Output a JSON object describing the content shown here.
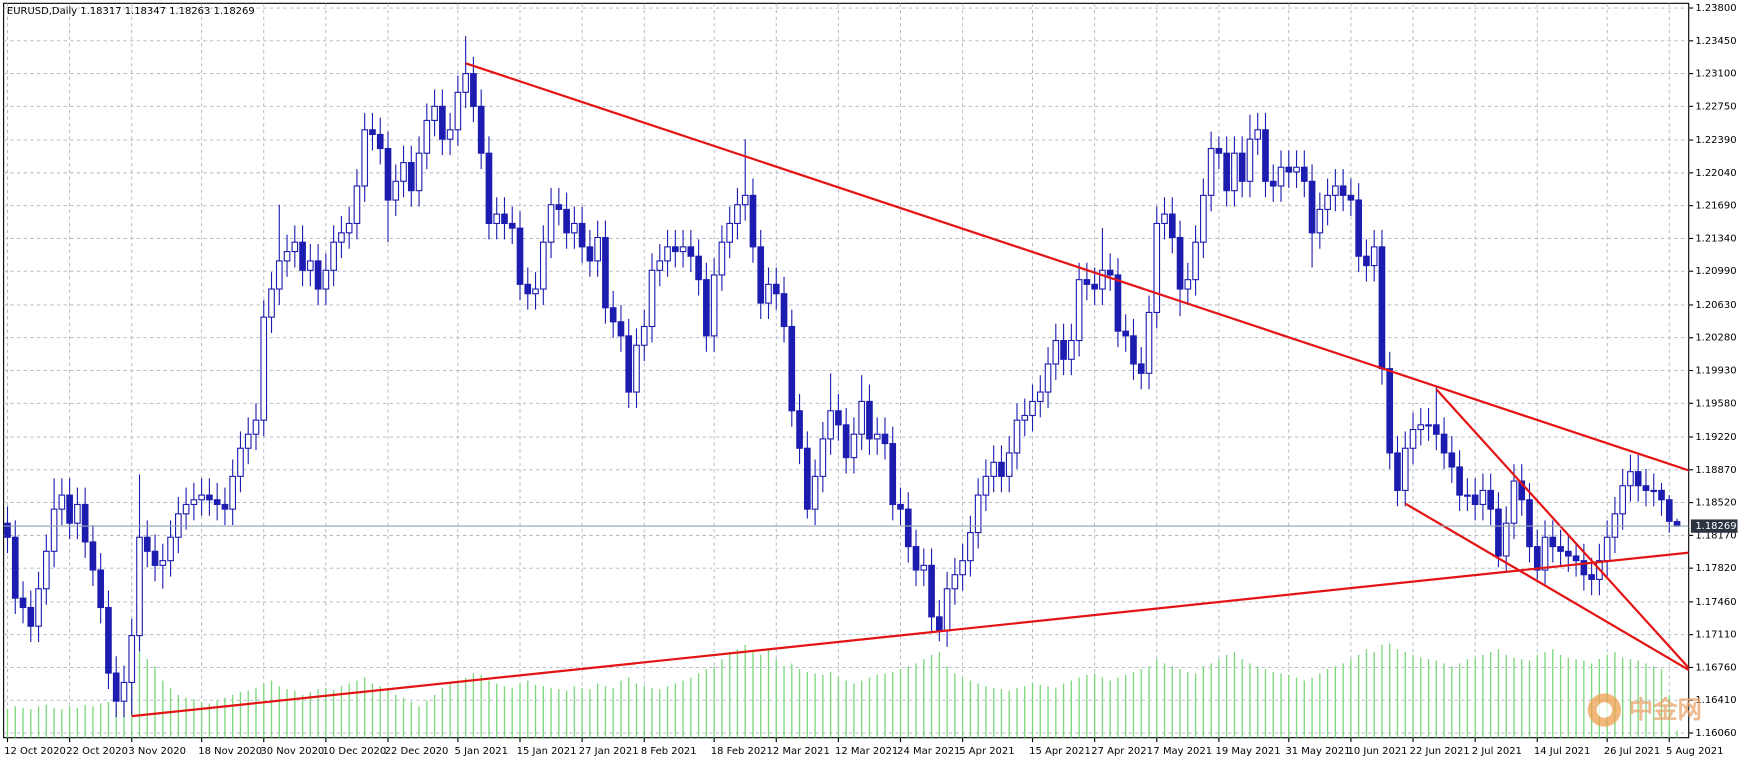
{
  "chart_data": {
    "type": "candlestick",
    "header": "EURUSD,Daily  1.18317 1.18347 1.18263 1.18269",
    "open": [
      1.183,
      1.1815,
      1.175,
      1.174,
      1.172,
      1.176,
      1.18,
      1.1845,
      1.186,
      1.183,
      1.185,
      1.181,
      1.178,
      1.174,
      1.167,
      1.164,
      1.166,
      1.171,
      1.1815,
      1.18,
      1.1785,
      1.179,
      1.1815,
      1.184,
      1.185,
      1.1855,
      1.186,
      1.1855,
      1.185,
      1.1845,
      1.188,
      1.191,
      1.1925,
      1.194,
      1.205,
      1.208,
      1.211,
      1.212,
      1.213,
      1.21,
      1.211,
      1.208,
      1.21,
      1.213,
      1.214,
      1.215,
      1.219,
      1.225,
      1.2245,
      1.223,
      1.2175,
      1.2195,
      1.2215,
      1.2185,
      1.2225,
      1.226,
      1.2275,
      1.224,
      1.225,
      1.229,
      1.231,
      1.2275,
      1.2225,
      1.215,
      1.216,
      1.215,
      1.2145,
      1.2085,
      1.2075,
      1.208,
      1.213,
      1.217,
      1.2165,
      1.214,
      1.215,
      1.2125,
      1.211,
      1.2135,
      1.206,
      1.2045,
      1.203,
      1.197,
      1.202,
      1.204,
      1.21,
      1.211,
      1.2125,
      1.212,
      1.2125,
      1.2115,
      1.209,
      1.203,
      1.2095,
      1.213,
      1.215,
      1.217,
      1.218,
      1.2125,
      1.2065,
      1.2085,
      1.2075,
      1.204,
      1.195,
      1.191,
      1.1845,
      1.188,
      1.192,
      1.195,
      1.1935,
      1.19,
      1.1925,
      1.196,
      1.192,
      1.1925,
      1.1915,
      1.185,
      1.1845,
      1.1805,
      1.178,
      1.1785,
      1.173,
      1.1715,
      1.176,
      1.1775,
      1.179,
      1.182,
      1.186,
      1.188,
      1.1895,
      1.188,
      1.1905,
      1.194,
      1.1945,
      1.196,
      1.197,
      1.2,
      1.2025,
      1.2005,
      1.2025,
      1.209,
      1.2085,
      1.208,
      1.21,
      1.2095,
      1.2035,
      1.203,
      1.2,
      1.199,
      1.2055,
      1.215,
      1.216,
      1.2135,
      1.208,
      1.209,
      1.213,
      1.218,
      1.223,
      1.2225,
      1.2185,
      1.2225,
      1.2195,
      1.224,
      1.225,
      1.2195,
      1.219,
      1.221,
      1.2205,
      1.221,
      1.2195,
      1.214,
      1.2165,
      1.218,
      1.219,
      1.218,
      1.2175,
      1.2115,
      1.2105,
      1.2125,
      1.1995,
      1.1905,
      1.1865,
      1.191,
      1.193,
      1.1935,
      1.1935,
      1.1925,
      1.1905,
      1.189,
      1.186,
      1.186,
      1.185,
      1.1865,
      1.1845,
      1.1795,
      1.183,
      1.1875,
      1.1855,
      1.1805,
      1.178,
      1.1815,
      1.1805,
      1.18,
      1.1795,
      1.179,
      1.1775,
      1.177,
      1.179,
      1.1815,
      1.184,
      1.187,
      1.1885,
      1.187,
      1.1865,
      1.1865,
      1.1855,
      1.18317
    ],
    "high": [
      1.1848,
      1.1833,
      1.1768,
      1.1758,
      1.1778,
      1.1818,
      1.1878,
      1.1878,
      1.1878,
      1.1868,
      1.1868,
      1.1828,
      1.1798,
      1.1758,
      1.1688,
      1.1678,
      1.1728,
      1.1882,
      1.1833,
      1.1818,
      1.1808,
      1.1833,
      1.1858,
      1.1868,
      1.1873,
      1.1878,
      1.1878,
      1.1873,
      1.1868,
      1.1898,
      1.1928,
      1.1943,
      1.1958,
      1.2068,
      1.2098,
      1.217,
      1.2138,
      1.2148,
      1.2148,
      1.2128,
      1.2128,
      1.2118,
      1.2148,
      1.2158,
      1.2168,
      1.2208,
      1.2268,
      1.2268,
      1.2263,
      1.2248,
      1.2213,
      1.2233,
      1.2233,
      1.2243,
      1.2278,
      1.2293,
      1.2293,
      1.2268,
      1.2308,
      1.235,
      1.2328,
      1.2293,
      1.2243,
      1.2178,
      1.2178,
      1.2168,
      1.2163,
      1.2103,
      1.2098,
      1.2148,
      1.2188,
      1.2188,
      1.2183,
      1.2168,
      1.2168,
      1.2143,
      1.2153,
      1.2153,
      1.2078,
      1.2063,
      1.2048,
      1.2038,
      1.2058,
      1.2118,
      1.2128,
      1.2143,
      1.2143,
      1.2143,
      1.2143,
      1.2133,
      1.2108,
      1.2113,
      1.2148,
      1.2168,
      1.2188,
      1.224,
      1.2198,
      1.2143,
      1.2103,
      1.2103,
      1.2093,
      1.2058,
      1.1968,
      1.1928,
      1.1898,
      1.1938,
      1.199,
      1.1968,
      1.1953,
      1.1943,
      1.1988,
      1.1978,
      1.1943,
      1.1943,
      1.1933,
      1.1868,
      1.1863,
      1.1823,
      1.1803,
      1.1803,
      1.1748,
      1.1778,
      1.1793,
      1.1808,
      1.1838,
      1.1878,
      1.1898,
      1.1913,
      1.1913,
      1.1923,
      1.1958,
      1.1963,
      1.1978,
      1.1988,
      1.2018,
      1.2043,
      1.2043,
      1.2043,
      1.2108,
      1.2108,
      1.2103,
      1.2145,
      1.2118,
      1.2113,
      1.2053,
      1.2048,
      1.2018,
      1.2073,
      1.2168,
      1.2178,
      1.2178,
      1.2153,
      1.2108,
      1.2148,
      1.2198,
      1.2248,
      1.2243,
      1.2243,
      1.2243,
      1.2243,
      1.2266,
      1.2268,
      1.2268,
      1.2213,
      1.2228,
      1.2228,
      1.2228,
      1.2228,
      1.2213,
      1.2183,
      1.2198,
      1.2208,
      1.2208,
      1.2198,
      1.2193,
      1.2133,
      1.2143,
      1.2143,
      1.2013,
      1.1923,
      1.1928,
      1.1948,
      1.1953,
      1.1953,
      1.1975,
      1.1943,
      1.1923,
      1.1908,
      1.1878,
      1.1878,
      1.1883,
      1.1883,
      1.1863,
      1.1848,
      1.1893,
      1.1893,
      1.1873,
      1.1823,
      1.1833,
      1.1833,
      1.1823,
      1.1818,
      1.1808,
      1.1808,
      1.1793,
      1.1808,
      1.1833,
      1.1858,
      1.1888,
      1.1903,
      1.1903,
      1.1888,
      1.1883,
      1.1873,
      1.186,
      1.18347
    ],
    "low": [
      1.1798,
      1.1733,
      1.1723,
      1.1703,
      1.1703,
      1.1743,
      1.1783,
      1.1828,
      1.1813,
      1.1813,
      1.1793,
      1.1763,
      1.1723,
      1.1653,
      1.1623,
      1.1623,
      1.1625,
      1.1693,
      1.1783,
      1.1768,
      1.176,
      1.1773,
      1.1798,
      1.1823,
      1.1833,
      1.1838,
      1.1838,
      1.1833,
      1.1828,
      1.1828,
      1.1863,
      1.1893,
      1.1908,
      1.1923,
      1.2033,
      1.2063,
      1.2093,
      1.2103,
      1.2083,
      1.2083,
      1.2063,
      1.2063,
      1.2083,
      1.2113,
      1.2123,
      1.2133,
      1.2173,
      1.2228,
      1.2213,
      1.213,
      1.2158,
      1.2178,
      1.2168,
      1.2168,
      1.2208,
      1.2243,
      1.2223,
      1.2223,
      1.2233,
      1.2273,
      1.2258,
      1.2208,
      1.2133,
      1.2133,
      1.2133,
      1.2128,
      1.2068,
      1.2058,
      1.2058,
      1.2063,
      1.2113,
      1.2148,
      1.2123,
      1.2123,
      1.2108,
      1.2093,
      1.2093,
      1.2043,
      1.2028,
      1.2013,
      1.1953,
      1.1953,
      1.2003,
      1.2023,
      1.2083,
      1.2093,
      1.2103,
      1.2103,
      1.2098,
      1.2073,
      1.2013,
      1.2013,
      1.2078,
      1.2113,
      1.2133,
      1.2153,
      1.2108,
      1.2048,
      1.2048,
      1.2058,
      1.2023,
      1.1933,
      1.1893,
      1.1835,
      1.1828,
      1.1863,
      1.1903,
      1.1918,
      1.1883,
      1.1883,
      1.1908,
      1.1903,
      1.1903,
      1.1898,
      1.1833,
      1.1828,
      1.1788,
      1.1763,
      1.1763,
      1.1713,
      1.1704,
      1.1698,
      1.1743,
      1.1758,
      1.1773,
      1.1803,
      1.1843,
      1.1863,
      1.1863,
      1.1863,
      1.1888,
      1.1923,
      1.1928,
      1.1943,
      1.1953,
      1.1983,
      1.1988,
      1.1988,
      1.2008,
      1.2068,
      1.2063,
      1.2063,
      1.2078,
      1.2018,
      1.2013,
      1.1983,
      1.1973,
      1.1973,
      1.2038,
      1.2133,
      1.2118,
      1.2051,
      1.2063,
      1.2073,
      1.2113,
      1.2163,
      1.2208,
      1.2168,
      1.2168,
      1.2178,
      1.2178,
      1.2223,
      1.2178,
      1.2173,
      1.2173,
      1.2188,
      1.2188,
      1.2178,
      1.2103,
      1.2123,
      1.2148,
      1.2163,
      1.2163,
      1.2158,
      1.2098,
      1.2088,
      1.2088,
      1.1978,
      1.1888,
      1.1848,
      1.1848,
      1.1893,
      1.1913,
      1.1918,
      1.1908,
      1.1888,
      1.1873,
      1.1843,
      1.1843,
      1.1833,
      1.1833,
      1.1828,
      1.1783,
      1.1778,
      1.1813,
      1.1838,
      1.1788,
      1.177,
      1.1763,
      1.1788,
      1.1783,
      1.1778,
      1.1773,
      1.1758,
      1.1753,
      1.1753,
      1.1773,
      1.1798,
      1.1823,
      1.1853,
      1.1853,
      1.1848,
      1.1848,
      1.1838,
      1.182,
      1.18263
    ],
    "close": [
      1.1815,
      1.175,
      1.174,
      1.172,
      1.176,
      1.18,
      1.1845,
      1.186,
      1.183,
      1.185,
      1.181,
      1.178,
      1.174,
      1.167,
      1.164,
      1.166,
      1.171,
      1.1815,
      1.18,
      1.1785,
      1.179,
      1.1815,
      1.184,
      1.185,
      1.1855,
      1.186,
      1.1855,
      1.185,
      1.1845,
      1.188,
      1.191,
      1.1925,
      1.194,
      1.205,
      1.208,
      1.211,
      1.212,
      1.213,
      1.21,
      1.211,
      1.208,
      1.21,
      1.213,
      1.214,
      1.215,
      1.219,
      1.225,
      1.2245,
      1.223,
      1.2175,
      1.2195,
      1.2215,
      1.2185,
      1.2225,
      1.226,
      1.2275,
      1.224,
      1.225,
      1.229,
      1.231,
      1.2275,
      1.2225,
      1.215,
      1.216,
      1.215,
      1.2145,
      1.2085,
      1.2075,
      1.208,
      1.213,
      1.217,
      1.2165,
      1.214,
      1.215,
      1.2125,
      1.211,
      1.2135,
      1.206,
      1.2045,
      1.203,
      1.197,
      1.202,
      1.204,
      1.21,
      1.211,
      1.2125,
      1.212,
      1.2125,
      1.2115,
      1.209,
      1.203,
      1.2095,
      1.213,
      1.215,
      1.217,
      1.218,
      1.2125,
      1.2065,
      1.2085,
      1.2075,
      1.204,
      1.195,
      1.191,
      1.1845,
      1.188,
      1.192,
      1.195,
      1.1935,
      1.19,
      1.1925,
      1.196,
      1.192,
      1.1925,
      1.1915,
      1.185,
      1.1845,
      1.1805,
      1.178,
      1.1785,
      1.173,
      1.1715,
      1.176,
      1.1775,
      1.179,
      1.182,
      1.186,
      1.188,
      1.1895,
      1.188,
      1.1905,
      1.194,
      1.1945,
      1.196,
      1.197,
      1.2,
      1.2025,
      1.2005,
      1.2025,
      1.209,
      1.2085,
      1.208,
      1.21,
      1.2095,
      1.2035,
      1.203,
      1.2,
      1.199,
      1.2055,
      1.215,
      1.216,
      1.2135,
      1.208,
      1.209,
      1.213,
      1.218,
      1.223,
      1.2225,
      1.2185,
      1.2225,
      1.2195,
      1.224,
      1.225,
      1.2195,
      1.219,
      1.221,
      1.2205,
      1.221,
      1.2195,
      1.214,
      1.2165,
      1.218,
      1.219,
      1.218,
      1.2175,
      1.2115,
      1.2105,
      1.2125,
      1.1995,
      1.1905,
      1.1865,
      1.191,
      1.193,
      1.1935,
      1.1935,
      1.1925,
      1.1905,
      1.189,
      1.186,
      1.186,
      1.185,
      1.1865,
      1.1845,
      1.1795,
      1.183,
      1.1875,
      1.1855,
      1.1805,
      1.178,
      1.1815,
      1.1805,
      1.18,
      1.1795,
      1.179,
      1.1775,
      1.177,
      1.179,
      1.1815,
      1.184,
      1.187,
      1.1885,
      1.187,
      1.1865,
      1.1865,
      1.1855,
      1.1832,
      1.18269
    ],
    "volume": [
      20,
      22,
      21,
      20,
      22,
      23,
      21,
      20,
      22,
      21,
      23,
      22,
      24,
      25,
      23,
      24,
      45,
      60,
      55,
      50,
      40,
      35,
      30,
      28,
      27,
      25,
      24,
      26,
      28,
      30,
      32,
      33,
      35,
      38,
      40,
      36,
      34,
      33,
      30,
      32,
      34,
      35,
      33,
      36,
      38,
      40,
      42,
      38,
      36,
      35,
      30,
      28,
      25,
      22,
      26,
      30,
      35,
      38,
      40,
      42,
      45,
      44,
      40,
      38,
      36,
      35,
      38,
      40,
      37,
      36,
      35,
      34,
      33,
      36,
      35,
      34,
      38,
      36,
      35,
      40,
      42,
      38,
      36,
      35,
      34,
      36,
      38,
      40,
      42,
      45,
      48,
      50,
      55,
      60,
      62,
      65,
      60,
      58,
      62,
      55,
      50,
      52,
      48,
      46,
      45,
      44,
      46,
      42,
      40,
      38,
      40,
      42,
      44,
      45,
      46,
      48,
      50,
      52,
      55,
      58,
      60,
      50,
      45,
      42,
      40,
      38,
      36,
      35,
      34,
      33,
      35,
      36,
      38,
      37,
      36,
      35,
      38,
      40,
      42,
      44,
      45,
      42,
      40,
      42,
      44,
      46,
      48,
      50,
      55,
      52,
      50,
      48,
      46,
      45,
      50,
      52,
      55,
      58,
      60,
      55,
      52,
      50,
      48,
      46,
      45,
      44,
      42,
      40,
      42,
      45,
      48,
      50,
      52,
      55,
      58,
      62,
      60,
      65,
      66,
      62,
      60,
      58,
      56,
      55,
      54,
      52,
      50,
      52,
      55,
      56,
      58,
      60,
      62,
      58,
      56,
      55,
      54,
      58,
      60,
      62,
      58,
      56,
      55,
      54,
      52,
      55,
      58,
      60,
      56,
      55,
      54,
      52,
      50,
      48,
      30,
      5
    ],
    "colors": {
      "candle": "#1c1cb0",
      "volume": "#7cd87c",
      "trendline": "#e41414",
      "grid": "#aab4bf",
      "price_line": "#8fa3b5"
    },
    "ylim": [
      1.1601,
      1.2385
    ],
    "yticks": [
      {
        "value": 1.238,
        "label": "1.23800"
      },
      {
        "value": 1.2345,
        "label": "1.23450"
      },
      {
        "value": 1.231,
        "label": "1.23100"
      },
      {
        "value": 1.2275,
        "label": "1.22750"
      },
      {
        "value": 1.2239,
        "label": "1.22390"
      },
      {
        "value": 1.2204,
        "label": "1.22040"
      },
      {
        "value": 1.2169,
        "label": "1.21690"
      },
      {
        "value": 1.2134,
        "label": "1.21340"
      },
      {
        "value": 1.2099,
        "label": "1.20990"
      },
      {
        "value": 1.2063,
        "label": "1.20630"
      },
      {
        "value": 1.2028,
        "label": "1.20280"
      },
      {
        "value": 1.1993,
        "label": "1.19930"
      },
      {
        "value": 1.1958,
        "label": "1.19580"
      },
      {
        "value": 1.1922,
        "label": "1.19220"
      },
      {
        "value": 1.1887,
        "label": "1.18870"
      },
      {
        "value": 1.1852,
        "label": "1.18520"
      },
      {
        "value": 1.1817,
        "label": "1.18170"
      },
      {
        "value": 1.1782,
        "label": "1.17820"
      },
      {
        "value": 1.1746,
        "label": "1.17460"
      },
      {
        "value": 1.1711,
        "label": "1.17110"
      },
      {
        "value": 1.1676,
        "label": "1.16760"
      },
      {
        "value": 1.1641,
        "label": "1.16410"
      },
      {
        "value": 1.1606,
        "label": "1.16060"
      }
    ],
    "xticks": [
      {
        "value": 0,
        "label": "12 Oct 2020"
      },
      {
        "value": 8,
        "label": "22 Oct 2020"
      },
      {
        "value": 16,
        "label": "3 Nov 2020"
      },
      {
        "value": 25,
        "label": "18 Nov 2020"
      },
      {
        "value": 33,
        "label": "30 Nov 2020"
      },
      {
        "value": 41,
        "label": "10 Dec 2020"
      },
      {
        "value": 49,
        "label": "22 Dec 2020"
      },
      {
        "value": 58,
        "label": "5 Jan 2021"
      },
      {
        "value": 66,
        "label": "15 Jan 2021"
      },
      {
        "value": 74,
        "label": "27 Jan 2021"
      },
      {
        "value": 82,
        "label": "8 Feb 2021"
      },
      {
        "value": 91,
        "label": "18 Feb 2021"
      },
      {
        "value": 99,
        "label": "2 Mar 2021"
      },
      {
        "value": 107,
        "label": "12 Mar 2021"
      },
      {
        "value": 115,
        "label": "24 Mar 2021"
      },
      {
        "value": 123,
        "label": "5 Apr 2021"
      },
      {
        "value": 132,
        "label": "15 Apr 2021"
      },
      {
        "value": 140,
        "label": "27 Apr 2021"
      },
      {
        "value": 148,
        "label": "7 May 2021"
      },
      {
        "value": 156,
        "label": "19 May 2021"
      },
      {
        "value": 165,
        "label": "31 May 2021"
      },
      {
        "value": 173,
        "label": "10 Jun 2021"
      },
      {
        "value": 181,
        "label": "22 Jun 2021"
      },
      {
        "value": 189,
        "label": "2 Jul 2021"
      },
      {
        "value": 197,
        "label": "14 Jul 2021"
      },
      {
        "value": 206,
        "label": "26 Jul 2021"
      },
      {
        "value": 214,
        "label": "5 Aug 2021"
      }
    ],
    "trendlines": [
      {
        "x": [
          59,
          217
        ],
        "y": [
          1.2321,
          1.1885
        ]
      },
      {
        "x": [
          16,
          217
        ],
        "y": [
          1.1624,
          1.1799
        ]
      },
      {
        "x": [
          180,
          217
        ],
        "y": [
          1.1851,
          1.1671
        ]
      },
      {
        "x": [
          184,
          217
        ],
        "y": [
          1.1973,
          1.1671
        ]
      }
    ],
    "grid": true,
    "watermark": "中金网"
  }
}
